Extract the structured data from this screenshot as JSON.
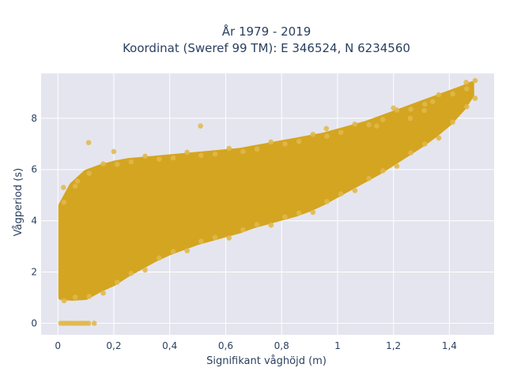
{
  "chart_data": {
    "type": "scatter",
    "title_line1": "År 1979 - 2019",
    "title_line2": "Koordinat (Sweref 99 TM): E 346524, N 6234560",
    "xlabel": "Signifikant våghöjd (m)",
    "ylabel": "Vågperiod (s)",
    "xlim": [
      -0.06,
      1.56
    ],
    "ylim": [
      -0.45,
      9.75
    ],
    "x_ticks": [
      0,
      0.2,
      0.4,
      0.6,
      0.8,
      1,
      1.2,
      1.4
    ],
    "x_tick_labels": [
      "0",
      "0,2",
      "0,4",
      "0,6",
      "0,8",
      "1",
      "1,2",
      "1,4"
    ],
    "y_ticks": [
      0,
      2,
      4,
      6,
      8
    ],
    "y_tick_labels": [
      "0",
      "2",
      "4",
      "6",
      "8"
    ],
    "grid": true,
    "colors": {
      "background": "#e5e5ef",
      "grid": "#ffffff",
      "marker": "#d4a520",
      "marker_light": "#e0b84a"
    },
    "series": [
      {
        "cloud_envelope": {
          "x": [
            0.01,
            0.05,
            0.1,
            0.15,
            0.2,
            0.25,
            0.3,
            0.35,
            0.4,
            0.45,
            0.5,
            0.55,
            0.6,
            0.65,
            0.7,
            0.75,
            0.8,
            0.85,
            0.9,
            0.95,
            1.0,
            1.05,
            1.1,
            1.15,
            1.2,
            1.25,
            1.3,
            1.35,
            1.4,
            1.45,
            1.48
          ],
          "y_low": [
            1.0,
            0.97,
            1.0,
            1.3,
            1.55,
            1.9,
            2.2,
            2.5,
            2.75,
            2.95,
            3.15,
            3.3,
            3.45,
            3.6,
            3.8,
            3.95,
            4.1,
            4.25,
            4.45,
            4.7,
            5.0,
            5.3,
            5.6,
            5.9,
            6.25,
            6.6,
            6.95,
            7.35,
            7.8,
            8.4,
            8.9
          ],
          "y_high": [
            4.6,
            5.4,
            5.9,
            6.1,
            6.25,
            6.35,
            6.4,
            6.45,
            6.5,
            6.55,
            6.6,
            6.65,
            6.7,
            6.75,
            6.85,
            6.95,
            7.05,
            7.15,
            7.25,
            7.35,
            7.5,
            7.65,
            7.8,
            8.0,
            8.2,
            8.4,
            8.6,
            8.8,
            9.0,
            9.2,
            9.35
          ]
        },
        "zero_period_points": {
          "x": [
            0.01,
            0.02,
            0.03,
            0.04,
            0.05,
            0.06,
            0.07,
            0.08,
            0.09,
            0.1,
            0.11,
            0.13
          ],
          "y": [
            0,
            0,
            0,
            0,
            0,
            0,
            0,
            0,
            0,
            0,
            0,
            0
          ]
        },
        "outliers": {
          "x": [
            0.51,
            0.11,
            0.2,
            1.14,
            1.2,
            1.31,
            1.34,
            1.46,
            0.07,
            0.02,
            1.26,
            0.96
          ],
          "y": [
            7.7,
            7.05,
            6.7,
            7.7,
            8.4,
            8.3,
            8.65,
            9.4,
            5.55,
            5.3,
            8.0,
            7.6
          ]
        }
      }
    ]
  }
}
